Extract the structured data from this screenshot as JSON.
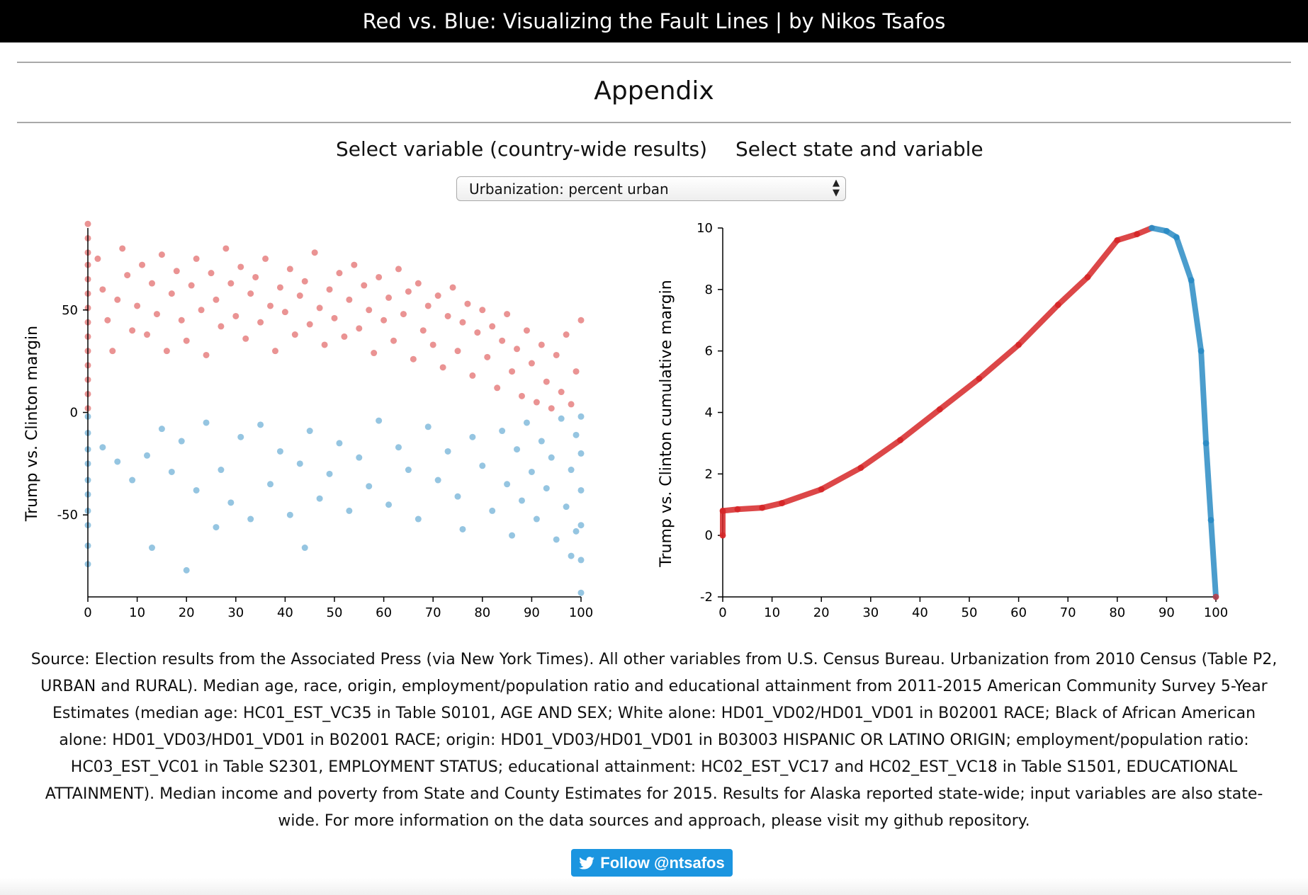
{
  "header": {
    "title": "Red vs. Blue: Visualizing the Fault Lines | by Nikos Tsafos"
  },
  "section": {
    "title": "Appendix"
  },
  "controls": {
    "left_heading": "Select variable (country-wide results)",
    "right_heading": "Select state and variable",
    "dropdown": {
      "selected": "Urbanization: percent urban"
    }
  },
  "colors": {
    "trump": "#d62728",
    "clinton": "#2b8cc4",
    "follow_button": "#1b95e0"
  },
  "chart_data": [
    {
      "type": "scatter",
      "xlabel": "",
      "ylabel": "Trump vs. Clinton margin",
      "xlim": [
        0,
        100
      ],
      "ylim": [
        -90,
        90
      ],
      "xticks": [
        "0",
        "10",
        "20",
        "30",
        "40",
        "50",
        "60",
        "70",
        "80",
        "90",
        "100"
      ],
      "yticks": [
        "50",
        "0",
        "-50"
      ],
      "series": [
        {
          "color": "red",
          "points": [
            [
              0,
              92
            ],
            [
              0,
              85
            ],
            [
              0,
              78
            ],
            [
              0,
              72
            ],
            [
              0,
              65
            ],
            [
              0,
              58
            ],
            [
              0,
              51
            ],
            [
              0,
              44
            ],
            [
              0,
              37
            ],
            [
              0,
              30
            ],
            [
              0,
              23
            ],
            [
              0,
              16
            ],
            [
              0,
              9
            ],
            [
              0,
              2
            ],
            [
              2,
              75
            ],
            [
              3,
              60
            ],
            [
              4,
              45
            ],
            [
              5,
              30
            ],
            [
              6,
              55
            ],
            [
              7,
              80
            ],
            [
              8,
              67
            ],
            [
              9,
              40
            ],
            [
              10,
              52
            ],
            [
              11,
              72
            ],
            [
              12,
              38
            ],
            [
              13,
              63
            ],
            [
              14,
              48
            ],
            [
              15,
              77
            ],
            [
              16,
              30
            ],
            [
              17,
              58
            ],
            [
              18,
              69
            ],
            [
              19,
              45
            ],
            [
              20,
              35
            ],
            [
              21,
              62
            ],
            [
              22,
              75
            ],
            [
              23,
              50
            ],
            [
              24,
              28
            ],
            [
              25,
              68
            ],
            [
              26,
              55
            ],
            [
              27,
              42
            ],
            [
              28,
              80
            ],
            [
              29,
              63
            ],
            [
              30,
              47
            ],
            [
              31,
              71
            ],
            [
              32,
              36
            ],
            [
              33,
              58
            ],
            [
              34,
              66
            ],
            [
              35,
              44
            ],
            [
              36,
              75
            ],
            [
              37,
              52
            ],
            [
              38,
              30
            ],
            [
              39,
              61
            ],
            [
              40,
              49
            ],
            [
              41,
              70
            ],
            [
              42,
              38
            ],
            [
              43,
              57
            ],
            [
              44,
              64
            ],
            [
              45,
              43
            ],
            [
              46,
              78
            ],
            [
              47,
              51
            ],
            [
              48,
              33
            ],
            [
              49,
              60
            ],
            [
              50,
              46
            ],
            [
              51,
              68
            ],
            [
              52,
              37
            ],
            [
              53,
              55
            ],
            [
              54,
              72
            ],
            [
              55,
              41
            ],
            [
              56,
              62
            ],
            [
              57,
              50
            ],
            [
              58,
              29
            ],
            [
              59,
              66
            ],
            [
              60,
              45
            ],
            [
              61,
              56
            ],
            [
              62,
              35
            ],
            [
              63,
              70
            ],
            [
              64,
              48
            ],
            [
              65,
              59
            ],
            [
              66,
              26
            ],
            [
              67,
              63
            ],
            [
              68,
              40
            ],
            [
              69,
              52
            ],
            [
              70,
              33
            ],
            [
              71,
              57
            ],
            [
              72,
              22
            ],
            [
              73,
              47
            ],
            [
              74,
              61
            ],
            [
              75,
              30
            ],
            [
              76,
              44
            ],
            [
              77,
              53
            ],
            [
              78,
              18
            ],
            [
              79,
              39
            ],
            [
              80,
              50
            ],
            [
              81,
              27
            ],
            [
              82,
              42
            ],
            [
              83,
              12
            ],
            [
              84,
              35
            ],
            [
              85,
              48
            ],
            [
              86,
              20
            ],
            [
              87,
              31
            ],
            [
              88,
              8
            ],
            [
              89,
              40
            ],
            [
              90,
              24
            ],
            [
              91,
              5
            ],
            [
              92,
              33
            ],
            [
              93,
              15
            ],
            [
              94,
              2
            ],
            [
              95,
              28
            ],
            [
              96,
              10
            ],
            [
              97,
              38
            ],
            [
              98,
              4
            ],
            [
              99,
              20
            ],
            [
              100,
              45
            ]
          ]
        },
        {
          "color": "blue",
          "points": [
            [
              0,
              -2
            ],
            [
              0,
              -10
            ],
            [
              0,
              -18
            ],
            [
              0,
              -25
            ],
            [
              0,
              -33
            ],
            [
              0,
              -40
            ],
            [
              0,
              -48
            ],
            [
              0,
              -55
            ],
            [
              0,
              -65
            ],
            [
              0,
              -74
            ],
            [
              3,
              -17
            ],
            [
              6,
              -24
            ],
            [
              9,
              -33
            ],
            [
              12,
              -21
            ],
            [
              13,
              -66
            ],
            [
              15,
              -8
            ],
            [
              17,
              -29
            ],
            [
              19,
              -14
            ],
            [
              20,
              -77
            ],
            [
              22,
              -38
            ],
            [
              24,
              -5
            ],
            [
              26,
              -56
            ],
            [
              27,
              -28
            ],
            [
              29,
              -44
            ],
            [
              31,
              -12
            ],
            [
              33,
              -52
            ],
            [
              35,
              -6
            ],
            [
              37,
              -35
            ],
            [
              39,
              -19
            ],
            [
              41,
              -50
            ],
            [
              43,
              -25
            ],
            [
              44,
              -66
            ],
            [
              45,
              -9
            ],
            [
              47,
              -42
            ],
            [
              49,
              -30
            ],
            [
              51,
              -15
            ],
            [
              53,
              -48
            ],
            [
              55,
              -22
            ],
            [
              57,
              -36
            ],
            [
              59,
              -4
            ],
            [
              61,
              -45
            ],
            [
              63,
              -17
            ],
            [
              65,
              -28
            ],
            [
              67,
              -52
            ],
            [
              69,
              -7
            ],
            [
              71,
              -33
            ],
            [
              73,
              -19
            ],
            [
              75,
              -41
            ],
            [
              76,
              -57
            ],
            [
              78,
              -12
            ],
            [
              80,
              -26
            ],
            [
              82,
              -48
            ],
            [
              84,
              -9
            ],
            [
              85,
              -35
            ],
            [
              86,
              -60
            ],
            [
              87,
              -18
            ],
            [
              88,
              -43
            ],
            [
              89,
              -5
            ],
            [
              90,
              -29
            ],
            [
              91,
              -52
            ],
            [
              92,
              -14
            ],
            [
              93,
              -37
            ],
            [
              94,
              -22
            ],
            [
              95,
              -62
            ],
            [
              96,
              -3
            ],
            [
              97,
              -46
            ],
            [
              98,
              -28
            ],
            [
              98,
              -70
            ],
            [
              99,
              -11
            ],
            [
              99,
              -58
            ],
            [
              100,
              -2
            ],
            [
              100,
              -20
            ],
            [
              100,
              -38
            ],
            [
              100,
              -55
            ],
            [
              100,
              -72
            ],
            [
              100,
              -88
            ]
          ]
        }
      ]
    },
    {
      "type": "line",
      "xlabel": "",
      "ylabel": "Trump vs. Clinton cumulative margin",
      "xlim": [
        0,
        100
      ],
      "ylim": [
        -2,
        10
      ],
      "xticks": [
        "0",
        "10",
        "20",
        "30",
        "40",
        "50",
        "60",
        "70",
        "80",
        "90",
        "100"
      ],
      "yticks": [
        "10",
        "8",
        "6",
        "4",
        "2",
        "0",
        "-2"
      ],
      "series": [
        {
          "name": "",
          "points": [
            [
              0,
              0
            ],
            [
              0,
              0.8
            ],
            [
              3,
              0.85
            ],
            [
              8,
              0.9
            ],
            [
              12,
              1.05
            ],
            [
              20,
              1.5
            ],
            [
              28,
              2.2
            ],
            [
              36,
              3.1
            ],
            [
              44,
              4.1
            ],
            [
              52,
              5.1
            ],
            [
              60,
              6.2
            ],
            [
              68,
              7.5
            ],
            [
              74,
              8.4
            ],
            [
              80,
              9.6
            ],
            [
              84,
              9.8
            ],
            [
              87,
              10
            ],
            [
              90,
              9.9
            ],
            [
              92,
              9.7
            ],
            [
              95,
              8.3
            ],
            [
              97,
              6.0
            ],
            [
              98,
              3.0
            ],
            [
              99,
              0.5
            ],
            [
              100,
              -2
            ]
          ]
        }
      ]
    }
  ],
  "footer": {
    "source_text": "Source: Election results from the Associated Press (via New York Times). All other variables from U.S. Census Bureau. Urbanization from 2010 Census (Table P2, URBAN and RURAL). Median age, race, origin, employment/population ratio and educational attainment from 2011-2015 American Community Survey 5-Year Estimates (median age: HC01_EST_VC35 in Table S0101, AGE AND SEX; White alone: HD01_VD02/HD01_VD01 in B02001 RACE; Black of African American alone: HD01_VD03/HD01_VD01 in B02001 RACE; origin: HD01_VD03/HD01_VD01 in B03003 HISPANIC OR LATINO ORIGIN; employment/population ratio: HC03_EST_VC01 in Table S2301, EMPLOYMENT STATUS; educational attainment: HC02_EST_VC17 and HC02_EST_VC18 in Table S1501, EDUCATIONAL ATTAINMENT). Median income and poverty from State and County Estimates for 2015. Results for Alaska reported state-wide; input variables are also state-wide. For more information on the data sources and approach, please visit my github repository.",
    "follow_label": "Follow @ntsafos",
    "twitter_icon": "twitter-bird-icon"
  }
}
